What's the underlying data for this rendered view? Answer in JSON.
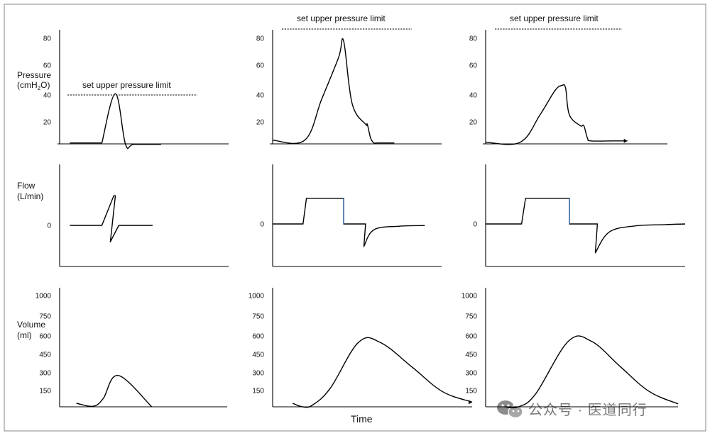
{
  "colors": {
    "border": "#9a9a9a",
    "axis": "#000000",
    "curve": "#000000",
    "flow_drop": "#4a7fc0",
    "watermark": "#7a7a7a"
  },
  "labels": {
    "pressure_line1": "Pressure",
    "pressure_line2_pre": "(cmH",
    "pressure_line2_sub": "2",
    "pressure_line2_post": "O)",
    "flow_line1": "Flow",
    "flow_line2": "(L/min)",
    "volume_line1": "Volume",
    "volume_line2": "(ml)",
    "time": "Time",
    "pressure_limit": "set upper pressure limit",
    "watermark": "公众号 · 医道同行",
    "watermark_icon": "wechat-icon"
  },
  "chart_data": [
    {
      "type": "line",
      "row": "pressure",
      "column": 1,
      "y_ticks": [
        "20",
        "40",
        "60",
        "80"
      ],
      "ylim": [
        0,
        85
      ],
      "upper_pressure_limit": 40,
      "series": [
        {
          "name": "pressure",
          "x": [
            0.06,
            0.25,
            0.33,
            0.39,
            0.44,
            0.6
          ],
          "y": [
            4.5,
            4.5,
            40,
            3.5,
            3.5,
            3.5
          ]
        }
      ]
    },
    {
      "type": "line",
      "row": "pressure",
      "column": 2,
      "y_ticks": [
        "20",
        "40",
        "60",
        "80"
      ],
      "ylim": [
        0,
        85
      ],
      "upper_pressure_limit": 85,
      "series": [
        {
          "name": "pressure",
          "x": [
            0.0,
            0.19,
            0.29,
            0.39,
            0.42,
            0.47,
            0.55,
            0.56,
            0.58,
            0.6,
            0.62,
            0.72
          ],
          "y": [
            6.5,
            6.5,
            36,
            66,
            78,
            33,
            18,
            18,
            8,
            4.5,
            4.5,
            4.5
          ]
        }
      ]
    },
    {
      "type": "line",
      "row": "pressure",
      "column": 3,
      "y_ticks": [
        "20",
        "40",
        "60",
        "80"
      ],
      "ylim": [
        0,
        85
      ],
      "upper_pressure_limit": 85,
      "series": [
        {
          "name": "pressure",
          "x": [
            0.0,
            0.19,
            0.3,
            0.38,
            0.42,
            0.44,
            0.46,
            0.52,
            0.54,
            0.56,
            0.58,
            0.7,
            0.78
          ],
          "y": [
            5,
            5,
            25,
            42,
            46,
            44,
            25,
            17,
            17,
            8,
            6,
            6,
            6
          ]
        }
      ]
    },
    {
      "type": "line",
      "row": "flow",
      "column": 1,
      "y_ticks": [
        "0"
      ],
      "ylim": [
        -1,
        1
      ],
      "series": [
        {
          "name": "flow",
          "x": [
            0.06,
            0.25,
            0.32,
            0.33,
            0.3,
            0.35,
            0.55
          ],
          "y": [
            0,
            0,
            0.9,
            0.9,
            -0.5,
            0,
            0
          ]
        }
      ]
    },
    {
      "type": "line",
      "row": "flow",
      "column": 2,
      "y_ticks": [
        "0"
      ],
      "ylim": [
        -1,
        1
      ],
      "series": [
        {
          "name": "flow",
          "x": [
            0.0,
            0.18,
            0.2,
            0.42,
            0.42,
            0.55,
            0.54,
            0.6,
            0.75,
            0.9
          ],
          "y": [
            0,
            0,
            0.8,
            0.8,
            0,
            0,
            -0.7,
            -0.18,
            -0.07,
            -0.05
          ]
        }
      ]
    },
    {
      "type": "line",
      "row": "flow",
      "column": 3,
      "y_ticks": [
        "0"
      ],
      "ylim": [
        -1,
        1
      ],
      "series": [
        {
          "name": "flow",
          "x": [
            0.0,
            0.18,
            0.2,
            0.42,
            0.42,
            0.56,
            0.55,
            0.62,
            0.75,
            0.9,
            1.0
          ],
          "y": [
            0,
            0,
            0.8,
            0.8,
            0,
            0,
            -0.9,
            -0.25,
            -0.06,
            -0.02,
            0
          ]
        }
      ]
    },
    {
      "type": "line",
      "row": "volume",
      "column": 1,
      "y_ticks": [
        "150",
        "300",
        "450",
        "600",
        "750",
        "1000"
      ],
      "ylim": [
        0,
        1000
      ],
      "series": [
        {
          "name": "volume",
          "x": [
            0.1,
            0.2,
            0.26,
            0.35,
            0.55
          ],
          "y": [
            30,
            5,
            70,
            265,
            0
          ]
        }
      ]
    },
    {
      "type": "line",
      "row": "volume",
      "column": 2,
      "y_ticks": [
        "150",
        "300",
        "450",
        "600",
        "750",
        "1000"
      ],
      "ylim": [
        0,
        1000
      ],
      "series": [
        {
          "name": "volume",
          "x": [
            0.1,
            0.15,
            0.2,
            0.29,
            0.43,
            0.54,
            0.7,
            0.85,
            1.0
          ],
          "y": [
            30,
            0,
            15,
            160,
            545,
            545,
            335,
            130,
            40
          ]
        }
      ]
    },
    {
      "type": "line",
      "row": "volume",
      "column": 3,
      "y_ticks": [
        "150",
        "300",
        "450",
        "600",
        "750",
        "1000"
      ],
      "ylim": [
        0,
        1000
      ],
      "series": [
        {
          "name": "volume",
          "x": [
            0.1,
            0.17,
            0.26,
            0.43,
            0.55,
            0.7,
            0.85,
            1.0
          ],
          "y": [
            0,
            0,
            110,
            555,
            555,
            340,
            130,
            25
          ]
        }
      ]
    }
  ]
}
